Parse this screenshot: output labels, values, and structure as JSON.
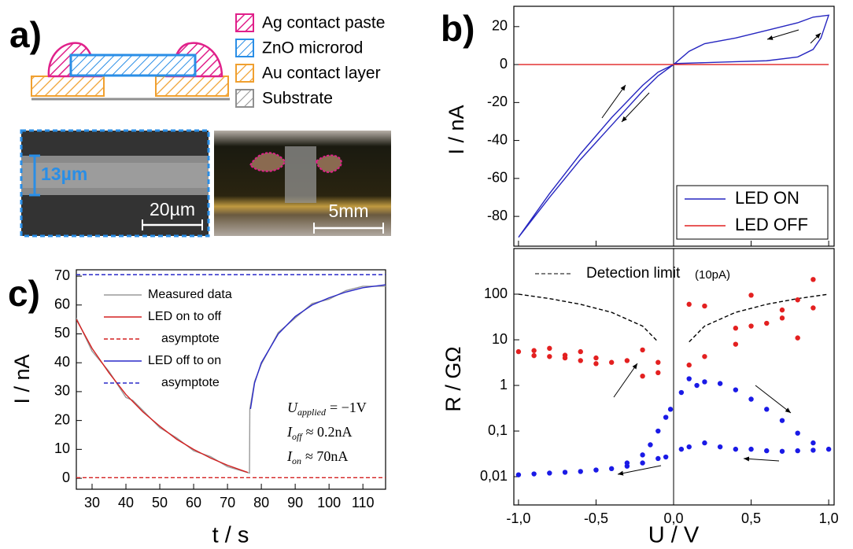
{
  "panel_a": {
    "label": "a)",
    "legend": [
      "Ag contact paste",
      "ZnO microrod",
      "Au contact layer",
      "Substrate"
    ],
    "sem_image": {
      "height_label": "13µm",
      "scale_label": "20µm"
    },
    "photo": {
      "scale_label": "5mm"
    }
  },
  "chart_data": [
    {
      "type": "line",
      "panel_label": "b)",
      "y_label": "I / nA",
      "xlim": [
        -1.03,
        1.035
      ],
      "ylim": [
        -95.7,
        30.7
      ],
      "yticks": [
        -80,
        -60,
        -40,
        -20,
        0,
        20
      ],
      "legend": "lower right",
      "series": [
        {
          "name": "LED ON",
          "color": "#2626c0",
          "x": [
            0,
            0.2,
            0.4,
            0.6,
            0.8,
            0.9,
            0.95,
            1.0,
            0.9,
            0.8,
            0.6,
            0.4,
            0.2,
            0.1,
            0,
            -0.1,
            -0.2,
            -0.4,
            -0.6,
            -0.8,
            -1.0,
            -0.8,
            -0.6,
            -0.4,
            -0.2,
            -0.1,
            0
          ],
          "values": [
            0.5,
            1,
            1.5,
            2,
            4,
            8,
            14,
            26,
            25,
            22,
            18,
            14,
            11,
            7,
            0,
            -6,
            -14,
            -32,
            -50,
            -70,
            -91,
            -68,
            -47,
            -28,
            -11,
            -4,
            0
          ]
        },
        {
          "name": "LED OFF",
          "color": "#e02020",
          "x": [
            -1.0,
            1.0
          ],
          "values": [
            0,
            0
          ]
        }
      ]
    },
    {
      "type": "scatter",
      "x_label": "U / V",
      "y_label": "R / GΩ",
      "log_y": true,
      "annotation": "Detection limit",
      "annotation_note": "(10pA)",
      "xlim": [
        -1.03,
        1.035
      ],
      "ylim": [
        0.0024,
        1000
      ],
      "xticks": [
        {
          "value": -1.0,
          "label": "-1,0"
        },
        {
          "value": -0.5,
          "label": "-0,5"
        },
        {
          "value": 0,
          "label": "0,0"
        },
        {
          "value": 0.5,
          "label": "0,5"
        },
        {
          "value": 1.0,
          "label": "1,0"
        }
      ],
      "yticks": [
        {
          "value": 0.01,
          "label": "0,01"
        },
        {
          "value": 0.1,
          "label": "0,1"
        },
        1,
        10,
        100
      ],
      "series": [
        {
          "color": "#000000",
          "mode": "dashed-line",
          "x": [
            -1.0,
            -0.8,
            -0.6,
            -0.4,
            -0.2,
            -0.1,
            0,
            0.1,
            0.2,
            0.4,
            0.6,
            0.8,
            1.0
          ],
          "values": [
            100,
            80,
            60,
            40,
            20,
            9,
            null,
            9,
            20,
            40,
            60,
            80,
            100
          ]
        },
        {
          "color": "#e32020",
          "mode": "markers",
          "x": [
            -1.0,
            -0.9,
            -0.9,
            -0.8,
            -0.8,
            -0.7,
            -0.7,
            -0.6,
            -0.6,
            -0.5,
            -0.5,
            -0.4,
            -0.3,
            -0.2,
            -0.2,
            -0.1,
            -0.1,
            0.1,
            0.1,
            0.2,
            0.2,
            0.4,
            0.4,
            0.5,
            0.5,
            0.6,
            0.7,
            0.7,
            0.8,
            0.8,
            0.9,
            0.9
          ],
          "values": [
            5.5,
            5.8,
            4.5,
            6.5,
            4.3,
            4.6,
            4,
            5.5,
            3.5,
            4.0,
            3.0,
            3.2,
            3.5,
            6,
            1.6,
            3.2,
            1.9,
            60,
            2.8,
            55,
            4.3,
            18,
            8,
            95,
            20,
            23,
            45,
            30,
            75,
            11,
            210,
            50
          ]
        },
        {
          "color": "#1a1ae6",
          "mode": "markers",
          "x": [
            -1.0,
            -0.9,
            -0.8,
            -0.7,
            -0.6,
            -0.5,
            -0.4,
            -0.3,
            -0.2,
            -0.1,
            -0.05,
            -0.3,
            -0.2,
            -0.15,
            -0.1,
            -0.05,
            -0.02,
            0.05,
            0.1,
            0.15,
            0.2,
            0.3,
            0.4,
            0.5,
            0.6,
            0.7,
            0.8,
            0.9,
            1.0,
            0.05,
            0.1,
            0.2,
            0.3,
            0.4,
            0.5,
            0.6,
            0.7,
            0.8,
            0.9
          ],
          "values": [
            0.011,
            0.0115,
            0.012,
            0.0125,
            0.013,
            0.014,
            0.015,
            0.017,
            0.02,
            0.025,
            0.027,
            0.02,
            0.03,
            0.05,
            0.1,
            0.2,
            0.3,
            0.7,
            1.4,
            1.0,
            1.2,
            1.1,
            0.8,
            0.5,
            0.3,
            0.17,
            0.09,
            0.055,
            0.04,
            0.04,
            0.045,
            0.055,
            0.045,
            0.04,
            0.04,
            0.037,
            0.036,
            0.037,
            0.038
          ]
        }
      ]
    },
    {
      "type": "line",
      "panel_label": "c)",
      "x_label": "t / s",
      "y_label": "I / nA",
      "legend": "upper left",
      "xlim": [
        25.35,
        116.7
      ],
      "ylim": [
        -3.8,
        72.2
      ],
      "xticks": [
        30,
        40,
        50,
        60,
        70,
        80,
        90,
        100,
        110
      ],
      "yticks": [
        0,
        10,
        20,
        30,
        40,
        50,
        60,
        70
      ],
      "annotations": [
        {
          "symbol": "U",
          "sub": "applied",
          "text": "= −1V"
        },
        {
          "symbol": "I",
          "sub": "off",
          "text": "≈ 0.2nA"
        },
        {
          "symbol": "I",
          "sub": "on",
          "text": "≈ 70nA"
        }
      ],
      "series": [
        {
          "name": "Measured data",
          "color": "#9a9a9a",
          "x": [
            25.35,
            30,
            35,
            40,
            42,
            45,
            50,
            55,
            60,
            65,
            70,
            76.5,
            76.6,
            78,
            80,
            85,
            90,
            95,
            100,
            105,
            110,
            116.7
          ],
          "values": [
            55.5,
            44,
            37,
            28,
            27,
            23.5,
            17.5,
            14,
            9.5,
            7.5,
            4,
            1.8,
            24,
            33.5,
            39.5,
            50.5,
            55.5,
            60.5,
            62,
            65,
            66.5,
            66.5
          ]
        },
        {
          "name": "LED on to off",
          "color": "#d42020",
          "x": [
            25.35,
            30,
            35,
            40,
            45,
            50,
            55,
            60,
            65,
            70,
            76
          ],
          "values": [
            55,
            45,
            36.5,
            29,
            23,
            18,
            13.5,
            10,
            7,
            4.5,
            2
          ]
        },
        {
          "name": "asymptote",
          "color": "#d42020",
          "mode": "dashed-line",
          "x": [
            25.35,
            116.7
          ],
          "values": [
            0.2,
            0.2
          ]
        },
        {
          "name": "LED off to on",
          "color": "#2a2ac8",
          "x": [
            76.8,
            78,
            80,
            85,
            90,
            95,
            100,
            105,
            110,
            116.7
          ],
          "values": [
            24,
            33,
            40,
            50,
            56,
            60,
            62.5,
            64.5,
            66,
            67
          ]
        },
        {
          "name": "asymptote",
          "color": "#2a2ac8",
          "mode": "dashed-line",
          "x": [
            25.35,
            116.7
          ],
          "values": [
            70.5,
            70.5
          ]
        }
      ]
    }
  ]
}
